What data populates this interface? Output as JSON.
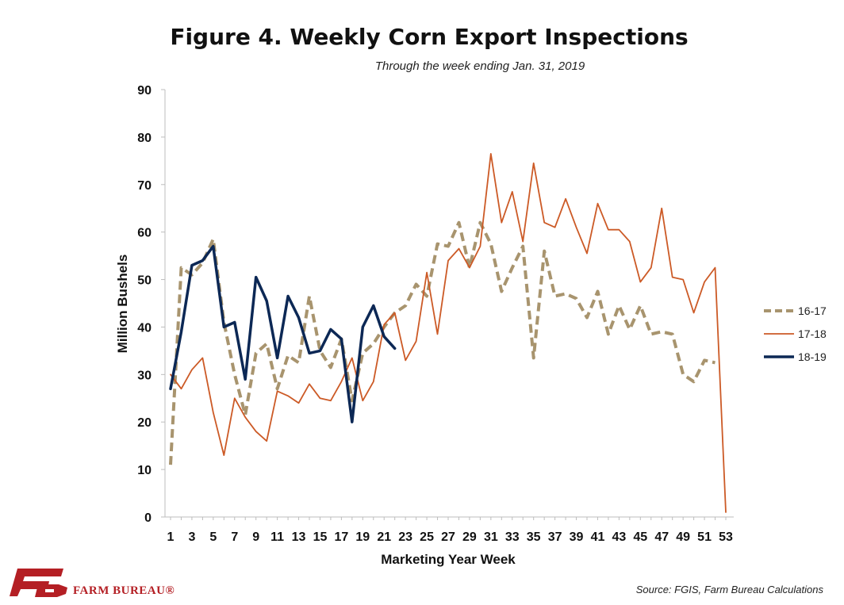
{
  "logo": {
    "text": "FARM BUREAU®",
    "mark": "FB"
  },
  "source": "Source: FGIS, Farm Bureau Calculations",
  "chart_data": {
    "type": "line",
    "title": "Figure 4. Weekly Corn Export Inspections",
    "subtitle": "Through the week ending Jan. 31, 2019",
    "xlabel": "Marketing Year Week",
    "ylabel": "Million Bushels",
    "ylim": [
      0,
      90
    ],
    "yticks": [
      0,
      10,
      20,
      30,
      40,
      50,
      60,
      70,
      80,
      90
    ],
    "xlim": [
      1,
      53
    ],
    "xticks": [
      1,
      3,
      5,
      7,
      9,
      11,
      13,
      15,
      17,
      19,
      21,
      23,
      25,
      27,
      29,
      31,
      33,
      35,
      37,
      39,
      41,
      43,
      45,
      47,
      49,
      51,
      53
    ],
    "legend_position": "right",
    "grid": false,
    "series": [
      {
        "name": "16-17",
        "color": "#a8946e",
        "style": "dashed",
        "x": [
          1,
          2,
          3,
          4,
          5,
          6,
          7,
          8,
          9,
          10,
          11,
          12,
          13,
          14,
          15,
          16,
          17,
          18,
          19,
          20,
          21,
          22,
          23,
          24,
          25,
          26,
          27,
          28,
          29,
          30,
          31,
          32,
          33,
          34,
          35,
          36,
          37,
          38,
          39,
          40,
          41,
          42,
          43,
          44,
          45,
          46,
          47,
          48,
          49,
          50,
          51,
          52,
          53
        ],
        "values": [
          11,
          52.5,
          51,
          53.5,
          58.5,
          41,
          30,
          21.5,
          34.5,
          36.5,
          27,
          34,
          32.5,
          46.5,
          35,
          31.5,
          37.5,
          24.5,
          34.5,
          36.5,
          40,
          43,
          44.5,
          49,
          46.5,
          57.5,
          57,
          62,
          52.5,
          62,
          57.5,
          47.5,
          52.5,
          57,
          33.5,
          56,
          46.5,
          47,
          46,
          42,
          47.5,
          38.5,
          44.5,
          39.5,
          44.5,
          38.5,
          39,
          38.5,
          30,
          28.5,
          33,
          32.5,
          null
        ]
      },
      {
        "name": "17-18",
        "color": "#cc5a26",
        "style": "solid",
        "x": [
          1,
          2,
          3,
          4,
          5,
          6,
          7,
          8,
          9,
          10,
          11,
          12,
          13,
          14,
          15,
          16,
          17,
          18,
          19,
          20,
          21,
          22,
          23,
          24,
          25,
          26,
          27,
          28,
          29,
          30,
          31,
          32,
          33,
          34,
          35,
          36,
          37,
          38,
          39,
          40,
          41,
          42,
          43,
          44,
          45,
          46,
          47,
          48,
          49,
          50,
          51,
          52,
          53
        ],
        "values": [
          30,
          27,
          31,
          33.5,
          22,
          13,
          25,
          21,
          18,
          16,
          26.5,
          25.5,
          24,
          28,
          25,
          24.5,
          28.5,
          33.5,
          24.5,
          28.5,
          40.5,
          43,
          33,
          37,
          51.5,
          38.5,
          54,
          56.5,
          52.5,
          57,
          76.5,
          62,
          68.5,
          58,
          74.5,
          62,
          61,
          67,
          61,
          55.5,
          66,
          60.5,
          60.5,
          58,
          49.5,
          52.5,
          65,
          50.5,
          50,
          43,
          49.5,
          52.5,
          1
        ]
      },
      {
        "name": "18-19",
        "color": "#0c2855",
        "style": "solid",
        "x": [
          1,
          2,
          3,
          4,
          5,
          6,
          7,
          8,
          9,
          10,
          11,
          12,
          13,
          14,
          15,
          16,
          17,
          18,
          19,
          20,
          21,
          22
        ],
        "values": [
          27,
          39,
          53,
          54,
          57,
          40,
          41,
          29,
          50.5,
          45.5,
          33.5,
          46.5,
          42,
          34.5,
          35,
          39.5,
          37.5,
          20,
          40,
          44.5,
          38,
          35.5
        ]
      }
    ]
  }
}
